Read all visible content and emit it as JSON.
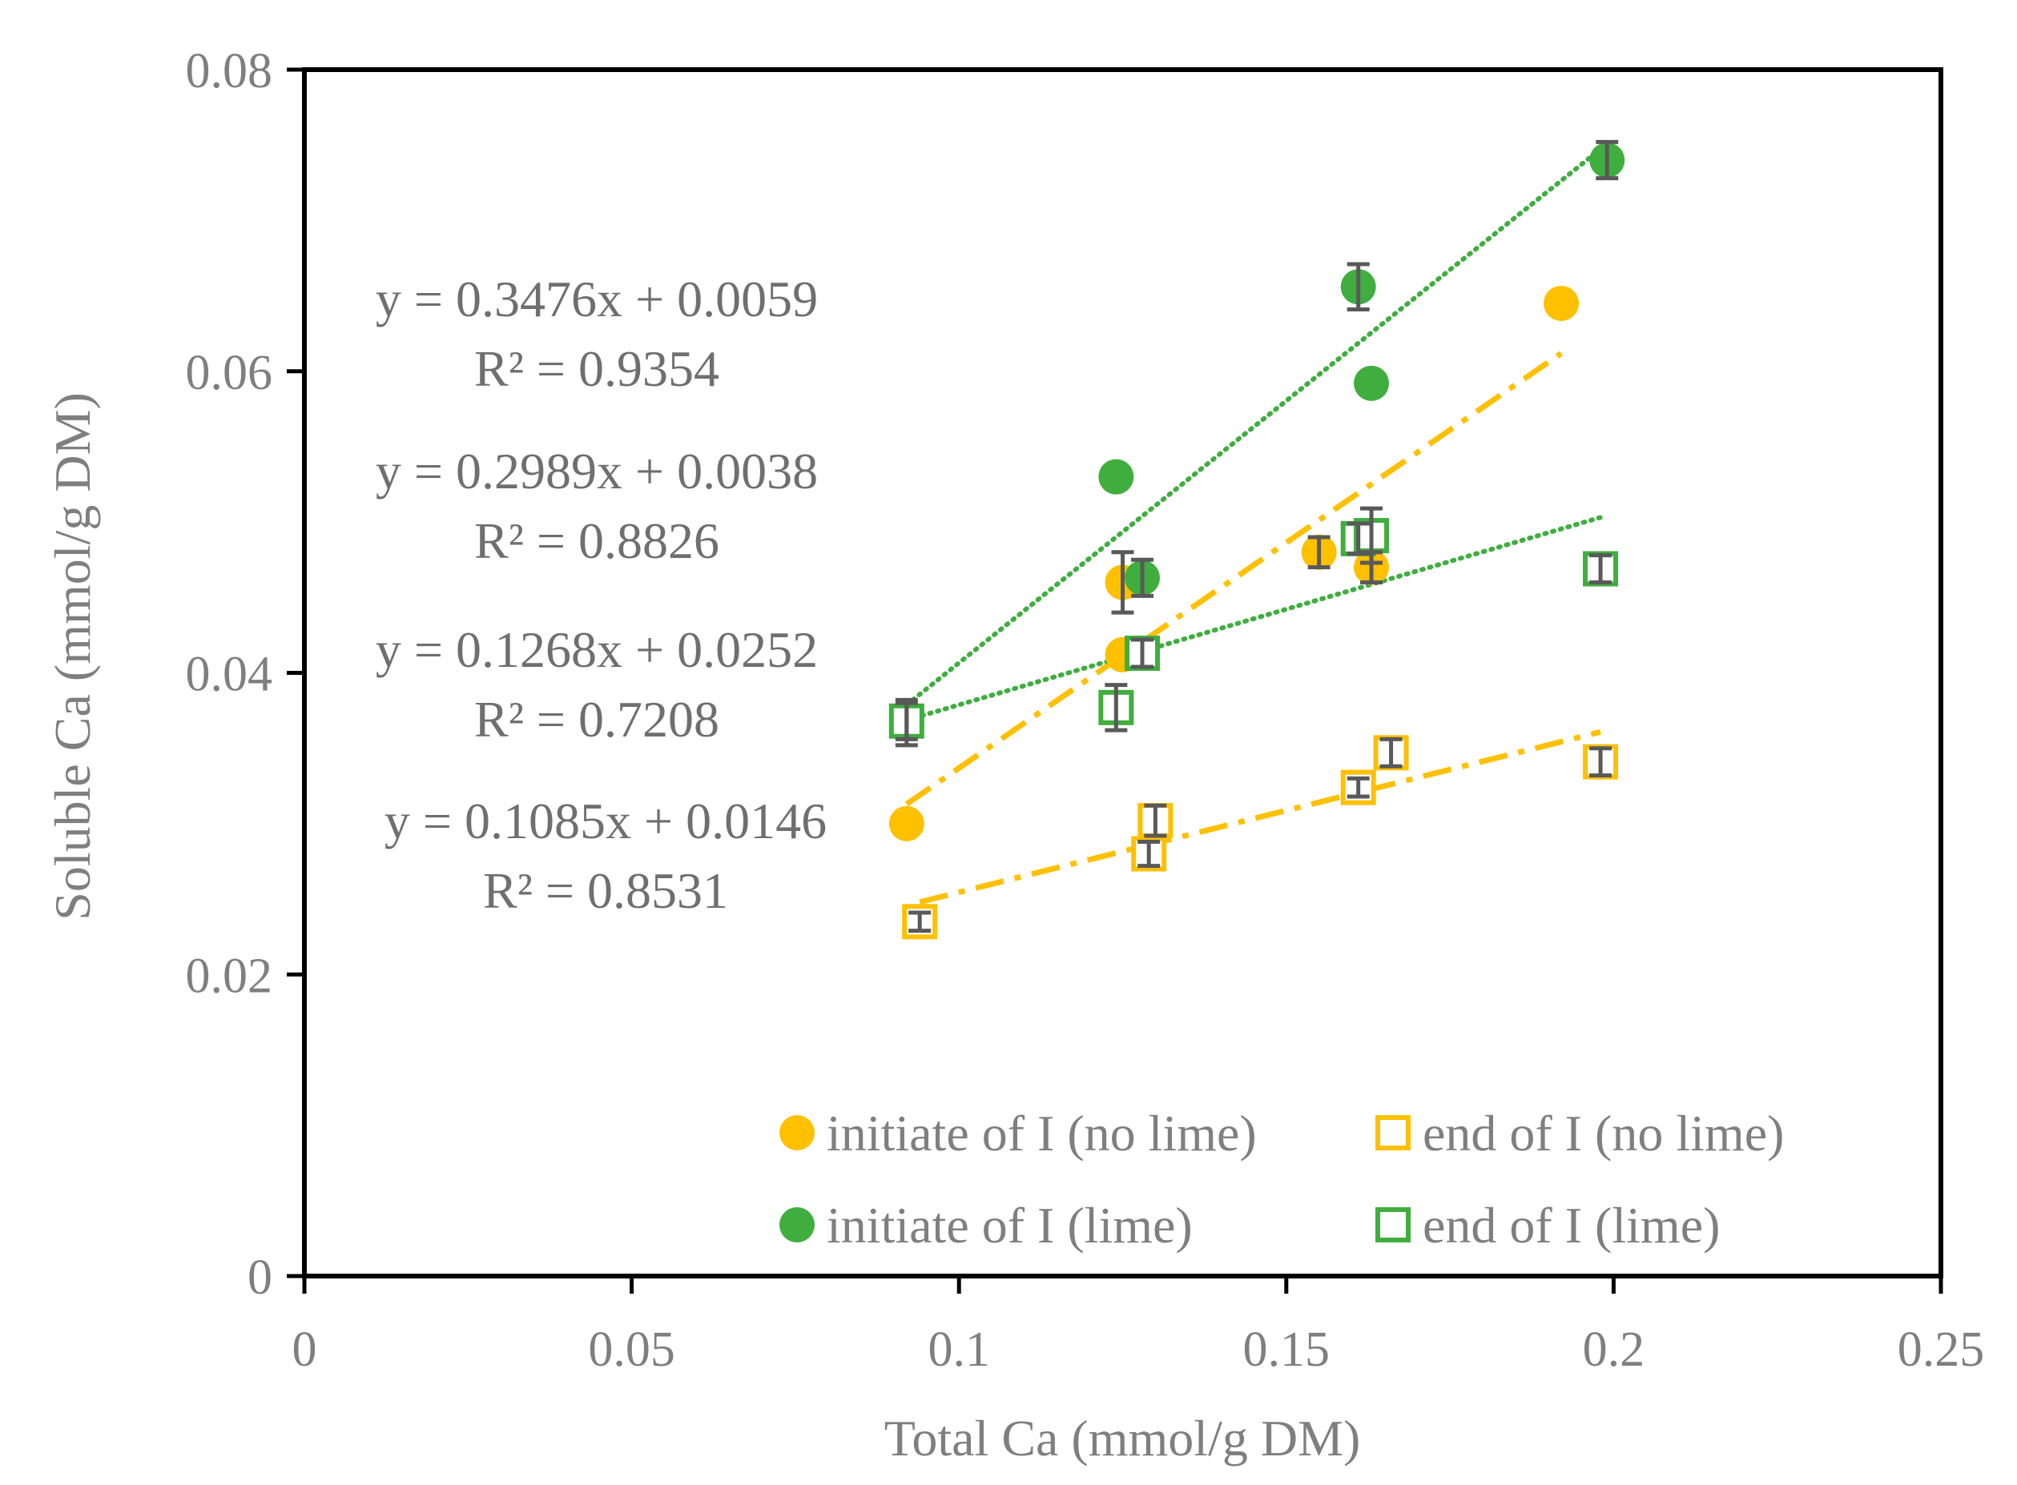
{
  "chart_data": {
    "type": "scatter",
    "title": "",
    "xlabel": "Total Ca (mmol/g DM)",
    "ylabel": "Soluble Ca (mmol/g DM)",
    "xlim": [
      0,
      0.25
    ],
    "ylim": [
      0,
      0.08
    ],
    "x_ticks": [
      "0",
      "0.05",
      "0.1",
      "0.15",
      "0.2",
      "0.25"
    ],
    "y_ticks": [
      "0",
      "0.02",
      "0.04",
      "0.06",
      "0.08"
    ],
    "x_tick_values": [
      0,
      0.05,
      0.1,
      0.15,
      0.2,
      0.25
    ],
    "y_tick_values": [
      0,
      0.02,
      0.04,
      0.06,
      0.08
    ],
    "grid": false,
    "legend_position": "bottom-right",
    "colors": {
      "no_lime": "#ffc000",
      "lime": "#3fae3f",
      "error_bar": "#595959",
      "axis": "#000000"
    },
    "series": [
      {
        "name": "initiate of I (no lime)",
        "marker": "filled-circle",
        "color": "#ffc000",
        "x": [
          0.092,
          0.125,
          0.125,
          0.155,
          0.163,
          0.192
        ],
        "y": [
          0.03,
          0.046,
          0.0412,
          0.048,
          0.047,
          0.0645
        ],
        "err": [
          0,
          0.002,
          0,
          0.001,
          0.001,
          0
        ],
        "trend": {
          "x0": 0.092,
          "x1": 0.192,
          "slope": 0.2989,
          "intercept": 0.0038,
          "style": "dash-dot"
        }
      },
      {
        "name": "end of I (no lime)",
        "marker": "open-square",
        "color": "#ffc000",
        "x": [
          0.094,
          0.129,
          0.13,
          0.161,
          0.166,
          0.198
        ],
        "y": [
          0.0235,
          0.028,
          0.0302,
          0.0324,
          0.0347,
          0.0341
        ],
        "err": [
          0.0006,
          0.0008,
          0.001,
          0.0006,
          0.0009,
          0.0009
        ],
        "trend": {
          "x0": 0.094,
          "x1": 0.198,
          "slope": 0.1085,
          "intercept": 0.0146,
          "style": "dash-dot"
        }
      },
      {
        "name": "initiate of I (lime)",
        "marker": "filled-circle",
        "color": "#3fae3f",
        "x": [
          0.092,
          0.124,
          0.128,
          0.161,
          0.163,
          0.199
        ],
        "y": [
          0.0367,
          0.053,
          0.0463,
          0.0656,
          0.0592,
          0.074
        ],
        "err": [
          0.0015,
          0,
          0.0012,
          0.0015,
          0,
          0.0012
        ],
        "trend": {
          "x0": 0.092,
          "x1": 0.199,
          "slope": 0.3476,
          "intercept": 0.0059,
          "style": "dotted"
        }
      },
      {
        "name": "end of I (lime)",
        "marker": "open-square",
        "color": "#3fae3f",
        "x": [
          0.092,
          0.124,
          0.128,
          0.161,
          0.163,
          0.198
        ],
        "y": [
          0.0368,
          0.0377,
          0.0413,
          0.0489,
          0.0491,
          0.0469
        ],
        "err": [
          0.0012,
          0.0015,
          0.0009,
          0.001,
          0.0018,
          0.0009
        ],
        "trend": {
          "x0": 0.092,
          "x1": 0.198,
          "slope": 0.1268,
          "intercept": 0.0252,
          "style": "dotted"
        }
      }
    ],
    "annotations": [
      {
        "equation": "y = 0.3476x + 0.0059",
        "r2": "R² = 0.9354"
      },
      {
        "equation": "y = 0.2989x + 0.0038",
        "r2": "R² = 0.8826"
      },
      {
        "equation": "y = 0.1268x + 0.0252",
        "r2": "R² = 0.7208"
      },
      {
        "equation": "y = 0.1085x + 0.0146",
        "r2": "R² = 0.8531"
      }
    ]
  }
}
